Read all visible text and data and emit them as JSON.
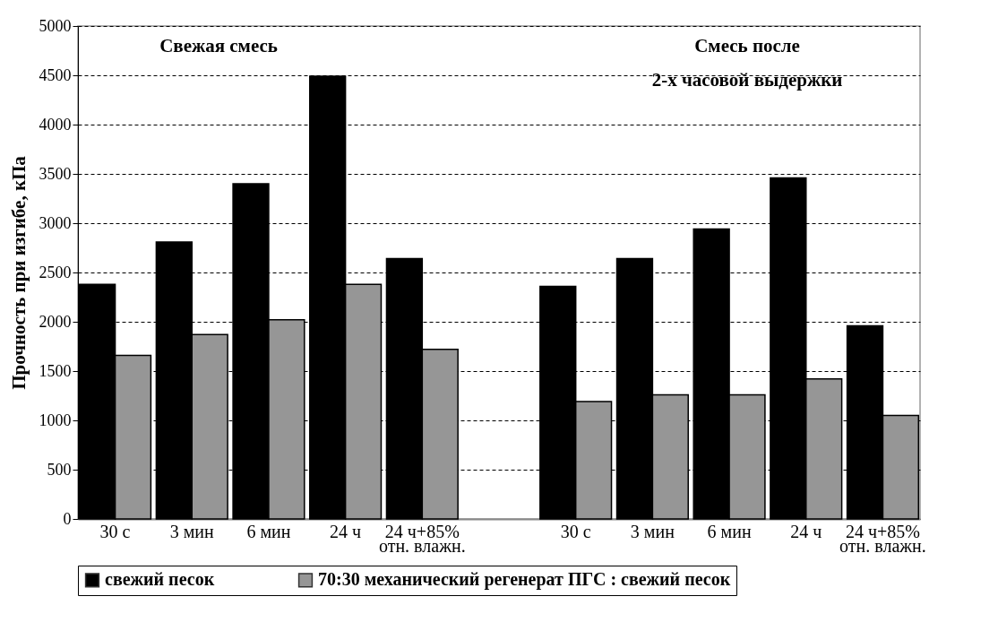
{
  "chart_data": {
    "type": "bar",
    "ylabel": "Прочность при изгибе, кПа",
    "categories": [
      "30 с",
      "3 мин",
      "6 мин",
      "24 ч",
      "24 ч+85%\nотн. влажн.",
      null,
      "30 с",
      "3 мин",
      "6 мин",
      "24 ч",
      "24 ч+85%\nотн. влажн."
    ],
    "series": [
      {
        "name": "свежий песок",
        "color": "#000000",
        "values": [
          2380,
          2810,
          3400,
          4490,
          2640,
          null,
          2360,
          2640,
          2940,
          3460,
          1960
        ]
      },
      {
        "name": "70:30 механический регенерат ПГС : свежий песок",
        "color": "#969696",
        "values": [
          1660,
          1870,
          2020,
          2380,
          1720,
          null,
          1190,
          1260,
          1260,
          1420,
          1050
        ]
      }
    ],
    "ylim": [
      0,
      5000
    ],
    "yticks": [
      0,
      500,
      1000,
      1500,
      2000,
      2500,
      3000,
      3500,
      4000,
      4500,
      5000
    ],
    "grid": "y",
    "legend": "bottom",
    "annotations": [
      "Свежая смесь",
      "Смесь после\n2-х часовой выдержки"
    ]
  }
}
